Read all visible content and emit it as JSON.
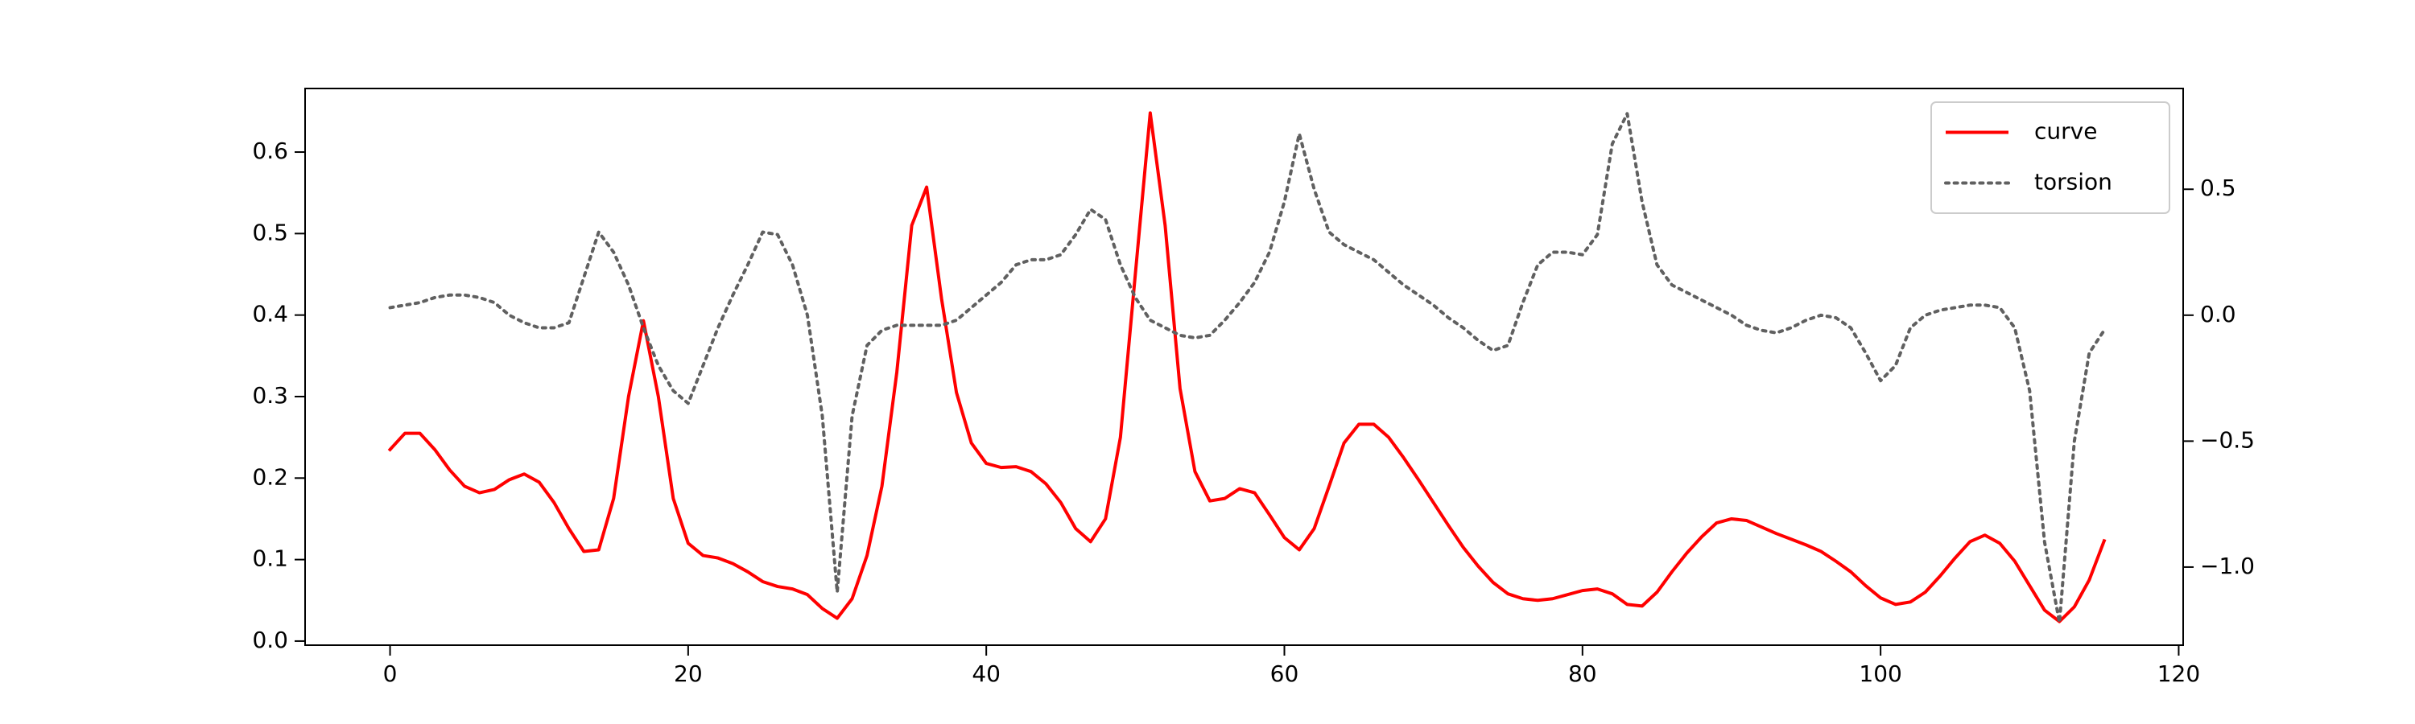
{
  "chart_data": {
    "type": "line",
    "x": [
      0,
      1,
      2,
      3,
      4,
      5,
      6,
      7,
      8,
      9,
      10,
      11,
      12,
      13,
      14,
      15,
      16,
      17,
      18,
      19,
      20,
      21,
      22,
      23,
      24,
      25,
      26,
      27,
      28,
      29,
      30,
      31,
      32,
      33,
      34,
      35,
      36,
      37,
      38,
      39,
      40,
      41,
      42,
      43,
      44,
      45,
      46,
      47,
      48,
      49,
      50,
      51,
      52,
      53,
      54,
      55,
      56,
      57,
      58,
      59,
      60,
      61,
      62,
      63,
      64,
      65,
      66,
      67,
      68,
      69,
      70,
      71,
      72,
      73,
      74,
      75,
      76,
      77,
      78,
      79,
      80,
      81,
      82,
      83,
      84,
      85,
      86,
      87,
      88,
      89,
      90,
      91,
      92,
      93,
      94,
      95,
      96,
      97,
      98,
      99,
      100,
      101,
      102,
      103,
      104,
      105,
      106,
      107,
      108,
      109,
      110,
      111,
      112,
      113,
      114,
      115
    ],
    "series": [
      {
        "name": "curve",
        "color": "#ff0000",
        "style": "solid",
        "values": [
          0.235,
          0.255,
          0.255,
          0.235,
          0.21,
          0.19,
          0.182,
          0.186,
          0.198,
          0.205,
          0.195,
          0.17,
          0.138,
          0.11,
          0.112,
          0.175,
          0.3,
          0.393,
          0.3,
          0.175,
          0.12,
          0.105,
          0.102,
          0.095,
          0.085,
          0.073,
          0.067,
          0.064,
          0.057,
          0.04,
          0.028,
          0.052,
          0.105,
          0.19,
          0.33,
          0.51,
          0.557,
          0.42,
          0.305,
          0.243,
          0.218,
          0.213,
          0.214,
          0.208,
          0.193,
          0.17,
          0.138,
          0.122,
          0.15,
          0.25,
          0.45,
          0.648,
          0.51,
          0.31,
          0.208,
          0.172,
          0.175,
          0.187,
          0.182,
          0.155,
          0.127,
          0.112,
          0.138,
          0.19,
          0.243,
          0.266,
          0.266,
          0.25,
          0.225,
          0.198,
          0.17,
          0.142,
          0.115,
          0.092,
          0.072,
          0.058,
          0.052,
          0.05,
          0.052,
          0.057,
          0.062,
          0.064,
          0.058,
          0.045,
          0.043,
          0.06,
          0.085,
          0.108,
          0.128,
          0.145,
          0.15,
          0.148,
          0.14,
          0.132,
          0.125,
          0.118,
          0.11,
          0.098,
          0.085,
          0.068,
          0.053,
          0.045,
          0.048,
          0.06,
          0.08,
          0.102,
          0.122,
          0.13,
          0.12,
          0.098,
          0.068,
          0.038,
          0.024,
          0.042,
          0.075,
          0.123
        ]
      },
      {
        "name": "torsion",
        "color": "#606060",
        "style": "dotted",
        "axis": "y2",
        "values": [
          0.03,
          0.04,
          0.05,
          0.07,
          0.08,
          0.08,
          0.07,
          0.05,
          0.0,
          -0.03,
          -0.05,
          -0.05,
          -0.03,
          0.15,
          0.33,
          0.25,
          0.12,
          -0.05,
          -0.2,
          -0.3,
          -0.35,
          -0.2,
          -0.05,
          0.08,
          0.2,
          0.33,
          0.32,
          0.2,
          0.0,
          -0.4,
          -1.1,
          -0.4,
          -0.12,
          -0.06,
          -0.04,
          -0.04,
          -0.04,
          -0.04,
          -0.02,
          0.03,
          0.08,
          0.13,
          0.2,
          0.22,
          0.22,
          0.24,
          0.32,
          0.42,
          0.38,
          0.2,
          0.07,
          -0.02,
          -0.05,
          -0.08,
          -0.09,
          -0.08,
          -0.02,
          0.05,
          0.13,
          0.25,
          0.45,
          0.72,
          0.5,
          0.33,
          0.28,
          0.25,
          0.22,
          0.17,
          0.12,
          0.08,
          0.04,
          -0.01,
          -0.05,
          -0.1,
          -0.14,
          -0.12,
          0.05,
          0.2,
          0.25,
          0.25,
          0.24,
          0.32,
          0.68,
          0.8,
          0.45,
          0.2,
          0.12,
          0.09,
          0.06,
          0.03,
          0.0,
          -0.04,
          -0.06,
          -0.07,
          -0.05,
          -0.02,
          0.0,
          -0.01,
          -0.05,
          -0.15,
          -0.26,
          -0.2,
          -0.05,
          0.0,
          0.02,
          0.03,
          0.04,
          0.04,
          0.03,
          -0.05,
          -0.3,
          -0.9,
          -1.22,
          -0.5,
          -0.15,
          -0.06
        ]
      }
    ],
    "xlim": [
      -5.7,
      120.3
    ],
    "xticks": [
      0,
      20,
      40,
      60,
      80,
      100,
      120
    ],
    "ylim": [
      -0.005,
      0.678
    ],
    "yticks": [
      {
        "value": 0,
        "label": "0.0"
      },
      0.1,
      0.2,
      0.3,
      0.4,
      0.5,
      0.6
    ],
    "y2lim": [
      -1.31,
      0.9
    ],
    "y2ticks": [
      {
        "value": -1,
        "label": "−1.0"
      },
      {
        "value": -0.5,
        "label": "−0.5"
      },
      {
        "value": 0,
        "label": "0.0"
      },
      0.5
    ],
    "legend": "upper right"
  }
}
